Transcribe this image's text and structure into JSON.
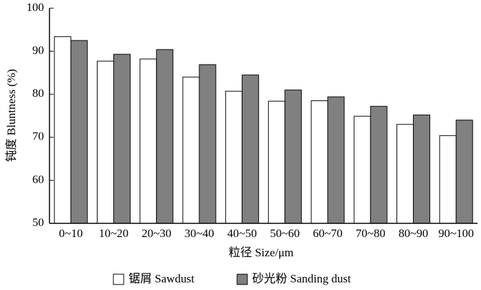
{
  "chart_data": {
    "type": "bar",
    "x_label": "粒径  Size/μm",
    "y_label": "钝度  Bluntness (%)",
    "categories": [
      "0~10",
      "10~20",
      "20~30",
      "30~40",
      "40~50",
      "50~60",
      "60~70",
      "70~80",
      "80~90",
      "90~100"
    ],
    "series": [
      {
        "name": "锯屑  Sawdust",
        "color": "#ffffff",
        "values": [
          93.4,
          87.7,
          88.2,
          84.0,
          80.7,
          78.4,
          78.5,
          74.9,
          73.0,
          70.4
        ]
      },
      {
        "name": "砂光粉  Sanding dust",
        "color": "#808080",
        "values": [
          92.5,
          89.3,
          90.4,
          86.9,
          84.5,
          81.0,
          79.4,
          77.2,
          75.2,
          74.0
        ]
      }
    ],
    "ylim": [
      50,
      100
    ],
    "yticks": [
      50,
      60,
      70,
      80,
      90,
      100
    ],
    "legend": "bottom"
  }
}
